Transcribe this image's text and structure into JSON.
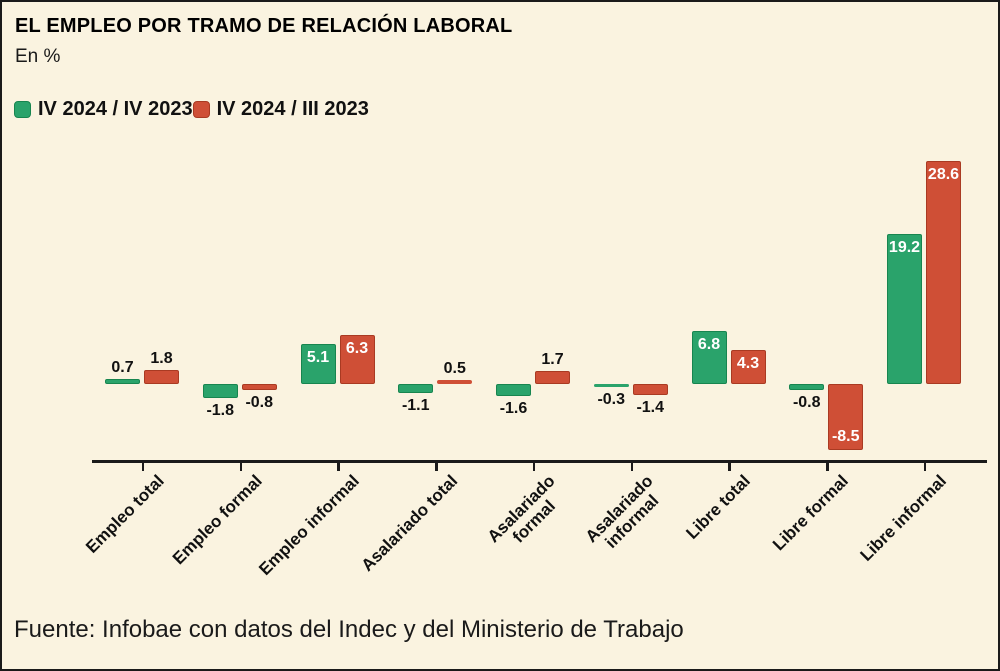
{
  "header": {
    "title": "EL EMPLEO POR TRAMO DE RELACIÓN LABORAL",
    "subtitle": "En %"
  },
  "legend": {
    "items": [
      {
        "label": "IV 2024 / IV 2023",
        "color": "#2aa36b"
      },
      {
        "label": "IV 2024 / III 2023",
        "color": "#cf4f36"
      }
    ]
  },
  "chart_data": {
    "type": "bar",
    "title": "EL EMPLEO POR TRAMO DE RELACIÓN LABORAL",
    "subtitle": "En %",
    "categories": [
      "Empleo total",
      "Empleo formal",
      "Empleo informal",
      "Asalariado total",
      "Asalariado\nformal",
      "Asalariado\ninformal",
      "Libre total",
      "Libre formal",
      "Libre informal"
    ],
    "series": [
      {
        "name": "IV 2024 / IV 2023",
        "color": "#2aa36b",
        "border": "#17854f",
        "values": [
          0.7,
          -1.8,
          5.1,
          -1.1,
          -1.6,
          -0.3,
          6.8,
          -0.8,
          19.2
        ]
      },
      {
        "name": "IV 2024 / III 2023",
        "color": "#cf4f36",
        "border": "#a93a22",
        "values": [
          1.8,
          -0.8,
          6.3,
          0.5,
          1.7,
          -1.4,
          4.3,
          -8.5,
          28.6
        ]
      }
    ],
    "xlabel": "",
    "ylabel": "En %",
    "value_labels": true,
    "grid": false,
    "legend_position": "top-left",
    "background": "#faf3e0",
    "axis_color": "#1a1a1a"
  },
  "footer": {
    "source": "Fuente: Infobae con datos del Indec y del Ministerio de Trabajo"
  }
}
